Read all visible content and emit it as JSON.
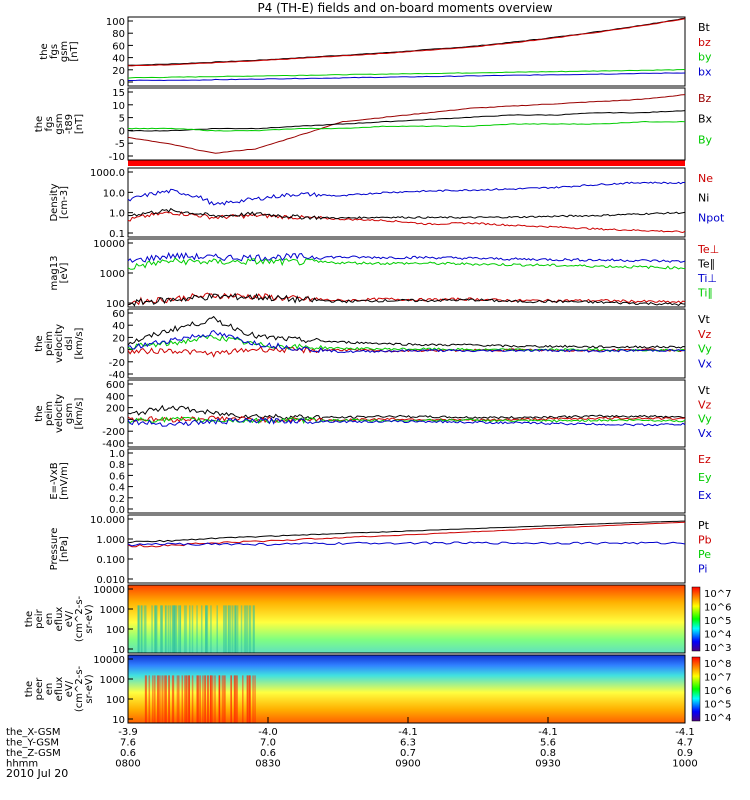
{
  "title": "P4 (TH-E) fields and on-board moments overview",
  "date": "2010 Jul 20",
  "colors": {
    "black": "#000000",
    "red": "#cc0000",
    "darkred": "#990000",
    "green": "#00cc00",
    "blue": "#0000cc"
  },
  "chart_data": [
    {
      "type": "line",
      "ylabel_lines": [
        "the",
        "fgs",
        "gsm",
        "[nT]"
      ],
      "yticks": [
        "100",
        "80",
        "60",
        "40",
        "20",
        "0"
      ],
      "ylim": [
        -5,
        105
      ],
      "series": [
        {
          "name": "Bt",
          "color": "#000000",
          "values": [
            28,
            30,
            33,
            36,
            40,
            44,
            48,
            53,
            58,
            65,
            73,
            82,
            92,
            103
          ]
        },
        {
          "name": "bz",
          "color": "#cc0000",
          "values": [
            27,
            29,
            32,
            35,
            39,
            43,
            47,
            52,
            57,
            64,
            72,
            81,
            91,
            102
          ]
        },
        {
          "name": "by",
          "color": "#00cc00",
          "values": [
            8,
            9,
            10,
            11,
            12,
            13,
            14,
            15,
            16,
            17,
            18,
            19,
            20,
            21
          ]
        },
        {
          "name": "bx",
          "color": "#0000cc",
          "values": [
            4,
            4,
            5,
            6,
            7,
            8,
            9,
            10,
            11,
            12,
            13,
            14,
            15,
            16
          ]
        }
      ]
    },
    {
      "type": "line",
      "ylabel_lines": [
        "the",
        "fgs",
        "gsm",
        "-t89",
        "[nT]"
      ],
      "yticks": [
        "15",
        "10",
        "5",
        "0",
        "-5",
        "-10"
      ],
      "ylim": [
        -15,
        17
      ],
      "series": [
        {
          "name": "Bz",
          "color": "#990000",
          "values": [
            -5,
            -8,
            -12,
            -10,
            -4,
            2,
            4,
            6,
            8,
            9,
            10,
            11,
            12,
            14
          ]
        },
        {
          "name": "Bx",
          "color": "#000000",
          "values": [
            -2,
            -2,
            -1,
            -1,
            0,
            1,
            2,
            3,
            4,
            5,
            5,
            6,
            6,
            7
          ]
        },
        {
          "name": "By",
          "color": "#00cc00",
          "values": [
            -1,
            -1,
            -2,
            -2,
            -1,
            -1,
            0,
            0,
            0,
            1,
            1,
            1,
            2,
            2
          ]
        }
      ]
    },
    {
      "type": "line",
      "log": true,
      "ylabel_lines": [
        "Density",
        "[cm-3]"
      ],
      "yticks": [
        "1000.0",
        "10.0",
        "1.0",
        "0.1"
      ],
      "ylim": [
        0.1,
        1500
      ],
      "series": [
        {
          "name": "Ne",
          "color": "#cc0000",
          "values": [
            1,
            3,
            1.5,
            2,
            1.5,
            1.2,
            1.0,
            0.6,
            0.7,
            0.5,
            0.4,
            0.3,
            0.25,
            0.2
          ]
        },
        {
          "name": "Ni",
          "color": "#000000",
          "values": [
            2,
            4,
            1.8,
            2.5,
            1.6,
            1.4,
            1.6,
            1.5,
            1.5,
            1.6,
            1.8,
            2,
            2.5,
            3
          ]
        },
        {
          "name": "Npot",
          "color": "#0000cc",
          "values": [
            15,
            60,
            8,
            20,
            40,
            30,
            50,
            60,
            70,
            80,
            100,
            150,
            200,
            180
          ]
        }
      ]
    },
    {
      "type": "line",
      "log": true,
      "ylabel_lines": [
        "mag13",
        "[eV]"
      ],
      "yticks": [
        "10000",
        "1000",
        "100"
      ],
      "ylim": [
        40,
        15000
      ],
      "series": [
        {
          "name": "Te⊥",
          "color": "#cc0000",
          "values": [
            60,
            80,
            110,
            100,
            80,
            70,
            80,
            75,
            80,
            70,
            70,
            70,
            65,
            60
          ]
        },
        {
          "name": "Te∥",
          "color": "#000000",
          "values": [
            55,
            75,
            100,
            95,
            75,
            65,
            70,
            70,
            75,
            65,
            65,
            60,
            55,
            50
          ]
        },
        {
          "name": "Ti⊥",
          "color": "#0000cc",
          "values": [
            2000,
            3500,
            3000,
            3000,
            3200,
            3100,
            3000,
            3000,
            2800,
            2600,
            2500,
            2400,
            2300,
            2100
          ]
        },
        {
          "name": "Ti∥",
          "color": "#00cc00",
          "values": [
            1200,
            2200,
            2000,
            2100,
            2000,
            1900,
            1800,
            1800,
            1700,
            1600,
            1500,
            1400,
            1300,
            1200
          ]
        }
      ]
    },
    {
      "type": "line",
      "ylabel_lines": [
        "the",
        "peim",
        "velocity",
        "dsl",
        "[km/s]"
      ],
      "yticks": [
        "60",
        "40",
        "20",
        "0",
        "-20",
        "-40"
      ],
      "ylim": [
        -40,
        60
      ],
      "series": [
        {
          "name": "Vt",
          "color": "#000000",
          "values": [
            10,
            30,
            45,
            20,
            15,
            12,
            10,
            8,
            8,
            6,
            6,
            5,
            5,
            5
          ]
        },
        {
          "name": "Vz",
          "color": "#cc0000",
          "values": [
            -2,
            0,
            -5,
            2,
            0,
            1,
            -1,
            0,
            0,
            1,
            0,
            0,
            1,
            0
          ]
        },
        {
          "name": "Vy",
          "color": "#00cc00",
          "values": [
            5,
            10,
            20,
            8,
            5,
            3,
            2,
            2,
            1,
            1,
            1,
            1,
            0,
            0
          ]
        },
        {
          "name": "Vx",
          "color": "#0000cc",
          "values": [
            3,
            15,
            25,
            10,
            3,
            -2,
            -1,
            0,
            -1,
            0,
            0,
            -1,
            0,
            0
          ]
        }
      ]
    },
    {
      "type": "line",
      "ylabel_lines": [
        "the",
        "peim",
        "velocity",
        "gsm",
        "[km/s]"
      ],
      "yticks": [
        "600",
        "400",
        "200",
        "0",
        "-200",
        "-400"
      ],
      "ylim": [
        -400,
        600
      ],
      "series": [
        {
          "name": "Vt",
          "color": "#000000",
          "values": [
            80,
            200,
            100,
            60,
            50,
            40,
            60,
            50,
            40,
            40,
            50,
            60,
            60,
            50
          ]
        },
        {
          "name": "Vz",
          "color": "#cc0000",
          "values": [
            20,
            10,
            30,
            10,
            10,
            0,
            20,
            10,
            0,
            10,
            20,
            30,
            30,
            20
          ]
        },
        {
          "name": "Vy",
          "color": "#00cc00",
          "values": [
            0,
            10,
            0,
            -10,
            0,
            0,
            -10,
            0,
            0,
            -10,
            -10,
            0,
            0,
            -10
          ]
        },
        {
          "name": "Vx",
          "color": "#0000cc",
          "values": [
            -20,
            -60,
            -20,
            -10,
            -10,
            -20,
            -20,
            -20,
            -30,
            -40,
            -50,
            -60,
            -70,
            -60
          ]
        }
      ]
    },
    {
      "type": "line",
      "ylabel_lines": [
        "E=-VxB",
        "[mV/m]"
      ],
      "yticks": [
        "1.0",
        "0.8",
        "0.6",
        "0.4",
        "0.2",
        "0.0"
      ],
      "ylim": [
        0,
        1
      ],
      "series": [
        {
          "name": "Ez",
          "color": "#cc0000",
          "values": []
        },
        {
          "name": "Ey",
          "color": "#00cc00",
          "values": []
        },
        {
          "name": "Ex",
          "color": "#0000cc",
          "values": []
        }
      ]
    },
    {
      "type": "line",
      "log": true,
      "ylabel_lines": [
        "Pressure",
        "[nPa]"
      ],
      "yticks": [
        "10.000",
        "1.000",
        "0.100",
        "0.010"
      ],
      "ylim": [
        0.003,
        15
      ],
      "series": [
        {
          "name": "Pt",
          "color": "#000000",
          "values": [
            0.5,
            0.6,
            0.8,
            1.0,
            1.2,
            1.5,
            1.8,
            2.2,
            2.7,
            3.3,
            4,
            5,
            6,
            7
          ]
        },
        {
          "name": "Pb",
          "color": "#cc0000",
          "values": [
            0.3,
            0.35,
            0.45,
            0.55,
            0.7,
            0.9,
            1.1,
            1.4,
            1.8,
            2.3,
            3,
            3.8,
            4.8,
            6
          ]
        },
        {
          "name": "Pe",
          "color": "#00cc00",
          "values": [
            0.005,
            0.02,
            0.015,
            0.012,
            0.01,
            0.01,
            0.01,
            0.009,
            0.009,
            0.008,
            0.008,
            0.008,
            0.009,
            0.01
          ]
        },
        {
          "name": "Pi",
          "color": "#0000cc",
          "values": [
            0.35,
            0.4,
            0.4,
            0.38,
            0.4,
            0.42,
            0.45,
            0.45,
            0.45,
            0.45,
            0.45,
            0.45,
            0.45,
            0.45
          ]
        }
      ]
    },
    {
      "type": "heatmap",
      "ylabel_lines": [
        "the",
        "peir",
        "en",
        "eflux",
        "eV/",
        "(cm^2-s-",
        "sr-eV)"
      ],
      "yticks": [
        "10000",
        "1000",
        "100",
        "10"
      ],
      "colorbar_ticks": [
        "10^7",
        "10^6",
        "10^5",
        "10^4",
        "10^3"
      ]
    },
    {
      "type": "heatmap",
      "ylabel_lines": [
        "the",
        "peer",
        "en",
        "eflux",
        "eV/",
        "(cm^2-s-",
        "sr-eV)"
      ],
      "yticks": [
        "10000",
        "1000",
        "100",
        "10"
      ],
      "colorbar_ticks": [
        "10^8",
        "10^7",
        "10^6",
        "10^5",
        "10^4"
      ]
    }
  ],
  "x_axis": {
    "rows": [
      {
        "label": "the_X-GSM",
        "values": [
          "-3.9",
          "-4.0",
          "-4.1",
          "-4.1",
          "-4.1"
        ]
      },
      {
        "label": "the_Y-GSM",
        "values": [
          "7.6",
          "7.0",
          "6.3",
          "5.6",
          "4.7"
        ]
      },
      {
        "label": "the_Z-GSM",
        "values": [
          "0.6",
          "0.6",
          "0.7",
          "0.8",
          "0.9"
        ]
      },
      {
        "label": "hhmm",
        "values": [
          "0800",
          "0830",
          "0900",
          "0930",
          "1000"
        ]
      }
    ]
  }
}
